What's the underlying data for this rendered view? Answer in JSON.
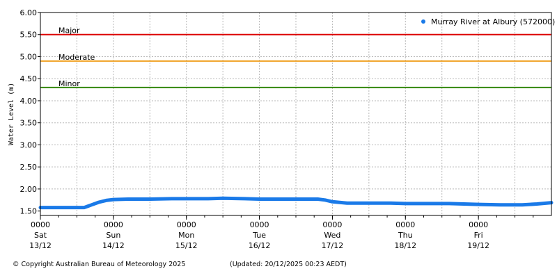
{
  "chart_data": {
    "type": "line",
    "title": "",
    "ylabel": "Water Level (m)",
    "xlabel": "",
    "ylim": [
      1.4,
      6.0
    ],
    "yticks": [
      1.5,
      2.0,
      2.5,
      3.0,
      3.5,
      4.0,
      4.5,
      5.0,
      5.5,
      6.0
    ],
    "ytick_labels": [
      "1.50",
      "2.00",
      "2.50",
      "3.00",
      "3.50",
      "4.00",
      "4.50",
      "5.00",
      "5.50",
      "6.00"
    ],
    "x_range_days": [
      0,
      7.0
    ],
    "xticks": [
      {
        "day": 0,
        "time": "0000",
        "weekday": "Sat",
        "date": "13/12"
      },
      {
        "day": 1,
        "time": "0000",
        "weekday": "Sun",
        "date": "14/12"
      },
      {
        "day": 2,
        "time": "0000",
        "weekday": "Mon",
        "date": "15/12"
      },
      {
        "day": 3,
        "time": "0000",
        "weekday": "Tue",
        "date": "16/12"
      },
      {
        "day": 4,
        "time": "0000",
        "weekday": "Wed",
        "date": "17/12"
      },
      {
        "day": 5,
        "time": "0000",
        "weekday": "Thu",
        "date": "18/12"
      },
      {
        "day": 6,
        "time": "0000",
        "weekday": "Fri",
        "date": "19/12"
      }
    ],
    "minor_ticks_per_day": 4,
    "grid": true,
    "legend_position": "top-right",
    "thresholds": [
      {
        "label": "Major",
        "value": 5.5,
        "color": "#dd0000"
      },
      {
        "label": "Moderate",
        "value": 4.9,
        "color": "#f0a020"
      },
      {
        "label": "Minor",
        "value": 4.3,
        "color": "#338800"
      }
    ],
    "series": [
      {
        "name": "Murray River at Albury (572000)",
        "color": "#1a7ae8",
        "x": [
          0,
          0.3,
          0.6,
          0.6,
          0.62,
          0.7,
          0.8,
          0.9,
          1.0,
          1.2,
          1.5,
          1.8,
          2.0,
          2.3,
          2.5,
          2.8,
          3.0,
          3.3,
          3.6,
          3.8,
          3.9,
          4.0,
          4.2,
          4.5,
          4.8,
          5.0,
          5.3,
          5.6,
          5.8,
          6.0,
          6.3,
          6.6,
          6.8,
          7.0
        ],
        "y": [
          1.58,
          1.58,
          1.58,
          1.58,
          1.59,
          1.64,
          1.7,
          1.74,
          1.76,
          1.77,
          1.77,
          1.78,
          1.78,
          1.78,
          1.79,
          1.78,
          1.77,
          1.77,
          1.77,
          1.77,
          1.75,
          1.71,
          1.68,
          1.68,
          1.68,
          1.67,
          1.67,
          1.67,
          1.66,
          1.65,
          1.64,
          1.64,
          1.66,
          1.69
        ]
      }
    ]
  },
  "footer": {
    "copyright": "© Copyright Australian Bureau of Meteorology 2025",
    "updated": "(Updated: 20/12/2025 00:23 AEDT)"
  }
}
